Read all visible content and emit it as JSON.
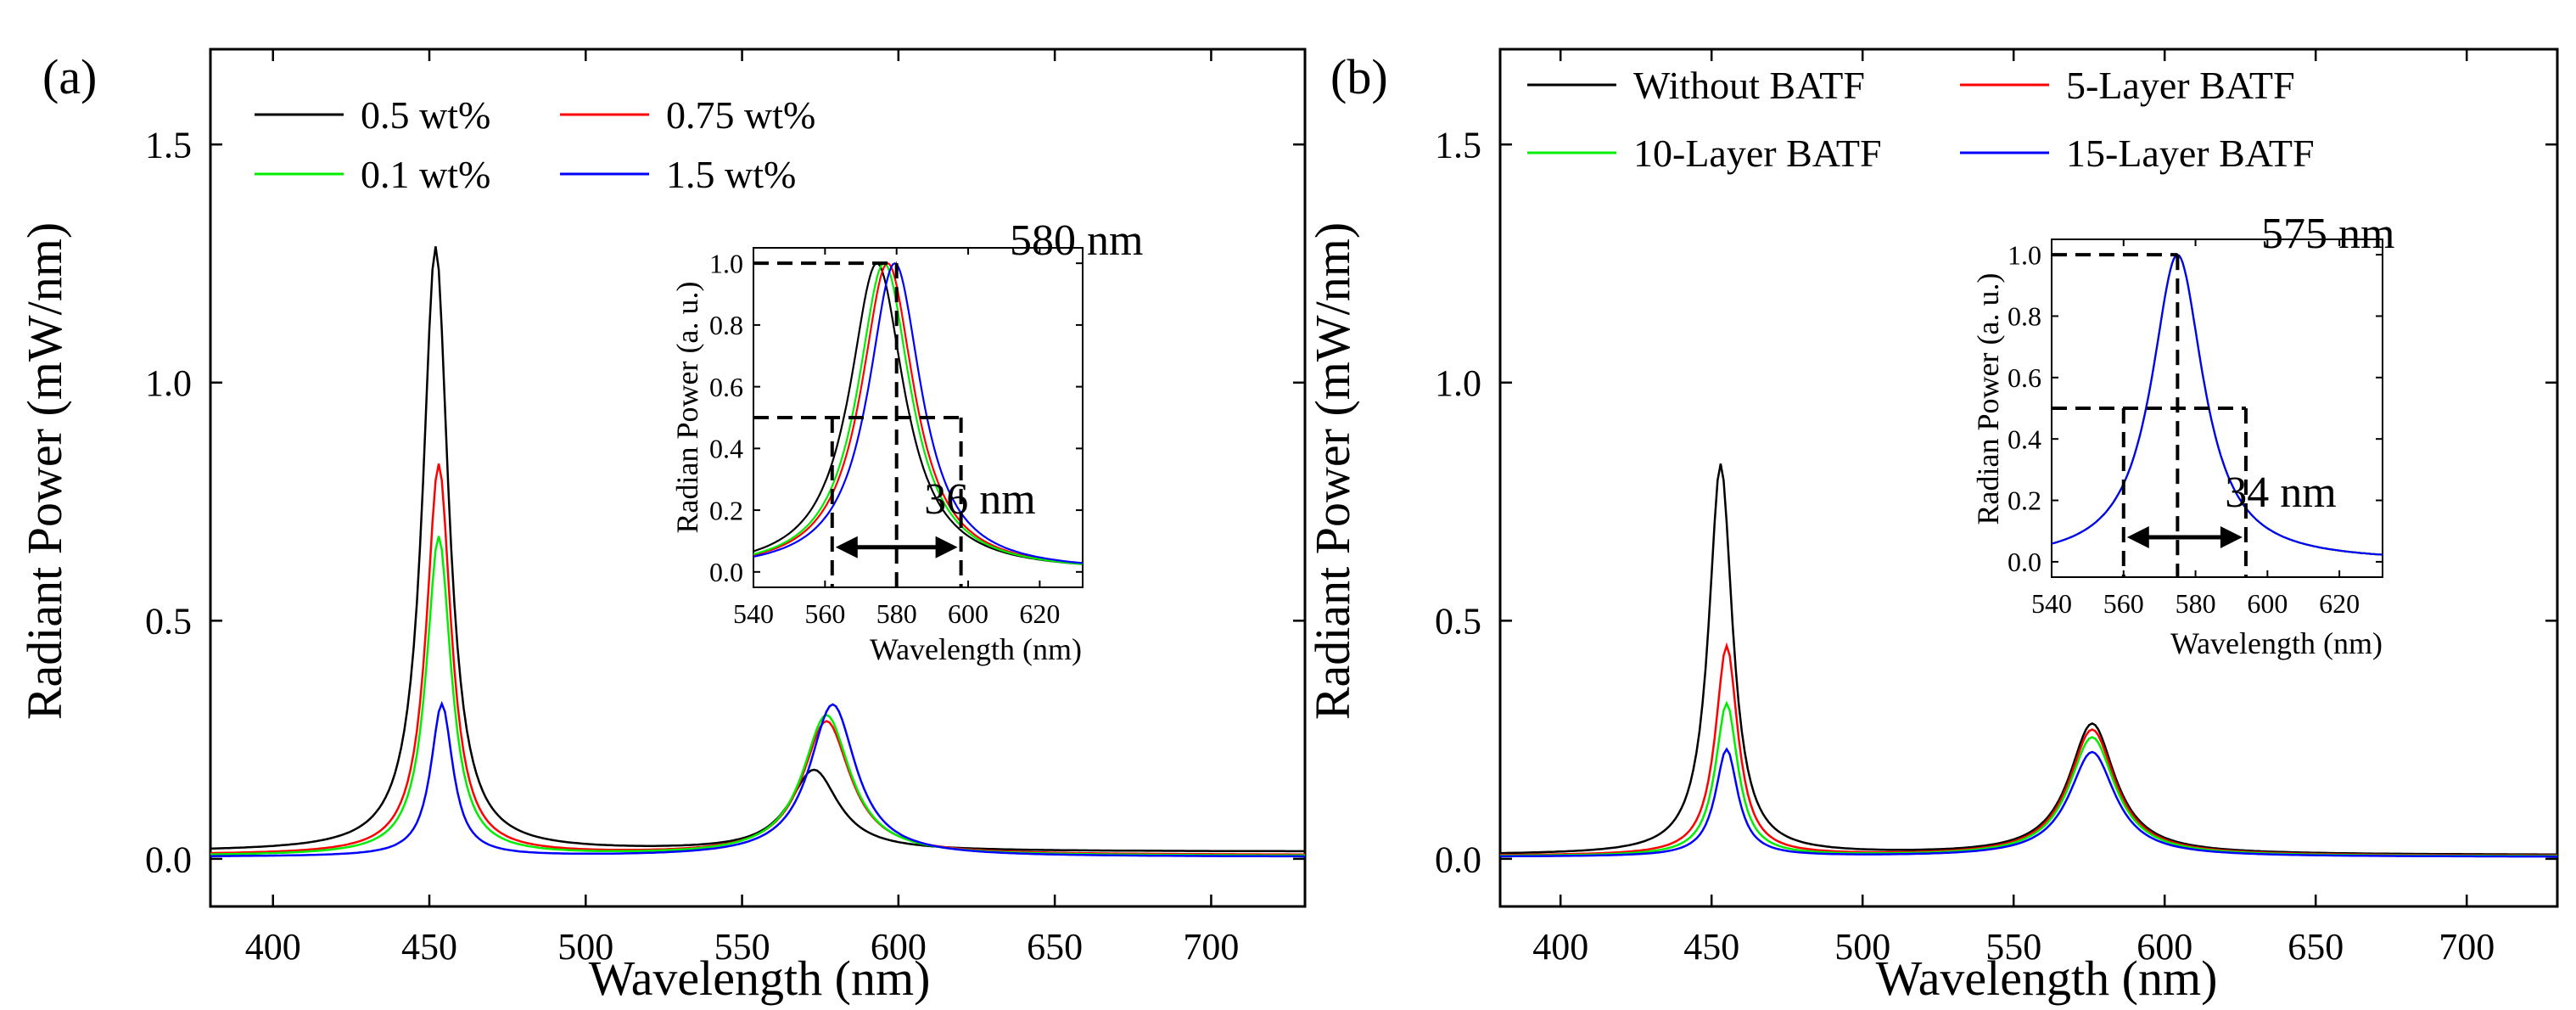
{
  "chart_data": [
    {
      "type": "line",
      "panel_label": "(a)",
      "xlabel": "Wavelength (nm)",
      "ylabel": "Radiant Power (mW/nm)",
      "xlim": [
        380,
        730
      ],
      "ylim": [
        -0.1,
        1.7
      ],
      "xticks": [
        400,
        450,
        500,
        550,
        600,
        650,
        700
      ],
      "yticks": [
        0.0,
        0.5,
        1.0,
        1.5
      ],
      "xtick_labels": [
        "400",
        "450",
        "500",
        "550",
        "600",
        "650",
        "700"
      ],
      "ytick_labels": [
        "0.0",
        "0.5",
        "1.0",
        "1.5"
      ],
      "legend_position": "top-left",
      "series": [
        {
          "name": "0.5 wt%",
          "color": "#000000",
          "blue_peak": 1.27,
          "blue_center": 452,
          "blue_width": 10,
          "yellow_peak": 0.17,
          "yellow_center": 573,
          "yellow_width": 19,
          "baseline": 0.015
        },
        {
          "name": "0.75 wt%",
          "color": "#ff0000",
          "blue_peak": 0.82,
          "blue_center": 453,
          "blue_width": 9.5,
          "yellow_peak": 0.28,
          "yellow_center": 577,
          "yellow_width": 18.5,
          "baseline": 0.008
        },
        {
          "name": "0.1 wt%",
          "color": "#00ee00",
          "blue_peak": 0.67,
          "blue_center": 453,
          "blue_width": 9.5,
          "yellow_peak": 0.295,
          "yellow_center": 577,
          "yellow_width": 18.5,
          "baseline": 0.006
        },
        {
          "name": "1.5 wt%",
          "color": "#0000ff",
          "blue_peak": 0.32,
          "blue_center": 454,
          "blue_width": 8.5,
          "yellow_peak": 0.32,
          "yellow_center": 579,
          "yellow_width": 18,
          "baseline": 0.004
        }
      ],
      "inset": {
        "xlabel": "Wavelength (nm)",
        "ylabel": "Radian Power (a. u.)",
        "xlim": [
          540,
          632
        ],
        "ylim": [
          -0.05,
          1.05
        ],
        "xticks": [
          540,
          560,
          580,
          600,
          620
        ],
        "yticks": [
          0.0,
          0.2,
          0.4,
          0.6,
          0.8,
          1.0
        ],
        "xtick_labels": [
          "540",
          "560",
          "580",
          "600",
          "620"
        ],
        "ytick_labels": [
          "0.0",
          "0.2",
          "0.4",
          "0.6",
          "0.8",
          "1.0"
        ],
        "peak_annotation": "580 nm",
        "fwhm_annotation": "36 nm",
        "peak_x": 580,
        "half_max_y": 0.5,
        "fwhm_left": 562,
        "fwhm_right": 598,
        "curves": [
          {
            "color": "#000000",
            "center": 574.5,
            "width": 18.5
          },
          {
            "color": "#ff0000",
            "center": 577.5,
            "width": 18
          },
          {
            "color": "#00ee00",
            "center": 576.5,
            "width": 18
          },
          {
            "color": "#0000ff",
            "center": 579.5,
            "width": 18
          }
        ]
      }
    },
    {
      "type": "line",
      "panel_label": "(b)",
      "xlabel": "Wavelength (nm)",
      "ylabel": "Radiant Power (mW/nm)",
      "xlim": [
        380,
        730
      ],
      "ylim": [
        -0.1,
        1.7
      ],
      "xticks": [
        400,
        450,
        500,
        550,
        600,
        650,
        700
      ],
      "yticks": [
        0.0,
        0.5,
        1.0,
        1.5
      ],
      "xtick_labels": [
        "400",
        "450",
        "500",
        "550",
        "600",
        "650",
        "700"
      ],
      "ytick_labels": [
        "0.0",
        "0.5",
        "1.0",
        "1.5"
      ],
      "legend_position": "top-left",
      "series": [
        {
          "name": "Without BATF",
          "color": "#000000",
          "blue_peak": 0.82,
          "blue_center": 453,
          "blue_width": 9.5,
          "yellow_peak": 0.275,
          "yellow_center": 576,
          "yellow_width": 18.5,
          "baseline": 0.008
        },
        {
          "name": "5-Layer BATF",
          "color": "#ff0000",
          "blue_peak": 0.44,
          "blue_center": 455,
          "blue_width": 9,
          "yellow_peak": 0.265,
          "yellow_center": 576,
          "yellow_width": 18.5,
          "baseline": 0.006
        },
        {
          "name": "10-Layer BATF",
          "color": "#00ee00",
          "blue_peak": 0.32,
          "blue_center": 455,
          "blue_width": 9,
          "yellow_peak": 0.25,
          "yellow_center": 576,
          "yellow_width": 18.5,
          "baseline": 0.005
        },
        {
          "name": "15-Layer BATF",
          "color": "#0000ff",
          "blue_peak": 0.225,
          "blue_center": 455,
          "blue_width": 9,
          "yellow_peak": 0.22,
          "yellow_center": 576,
          "yellow_width": 18.5,
          "baseline": 0.004
        }
      ],
      "inset": {
        "xlabel": "Wavelength (nm)",
        "ylabel": "Radian Power (a. u.)",
        "xlim": [
          540,
          632
        ],
        "ylim": [
          -0.05,
          1.05
        ],
        "xticks": [
          540,
          560,
          580,
          600,
          620
        ],
        "yticks": [
          0.0,
          0.2,
          0.4,
          0.6,
          0.8,
          1.0
        ],
        "xtick_labels": [
          "540",
          "560",
          "580",
          "600",
          "620"
        ],
        "ytick_labels": [
          "0.0",
          "0.2",
          "0.4",
          "0.6",
          "0.8",
          "1.0"
        ],
        "peak_annotation": "575 nm",
        "fwhm_annotation": "34 nm",
        "peak_x": 575,
        "half_max_y": 0.5,
        "fwhm_left": 560,
        "fwhm_right": 594,
        "curves": [
          {
            "color": "#000000",
            "center": 575,
            "width": 17.5
          },
          {
            "color": "#ff0000",
            "center": 575,
            "width": 17.5
          },
          {
            "color": "#00ee00",
            "center": 575,
            "width": 17.5
          },
          {
            "color": "#0000ff",
            "center": 575,
            "width": 17.5
          }
        ]
      }
    }
  ]
}
